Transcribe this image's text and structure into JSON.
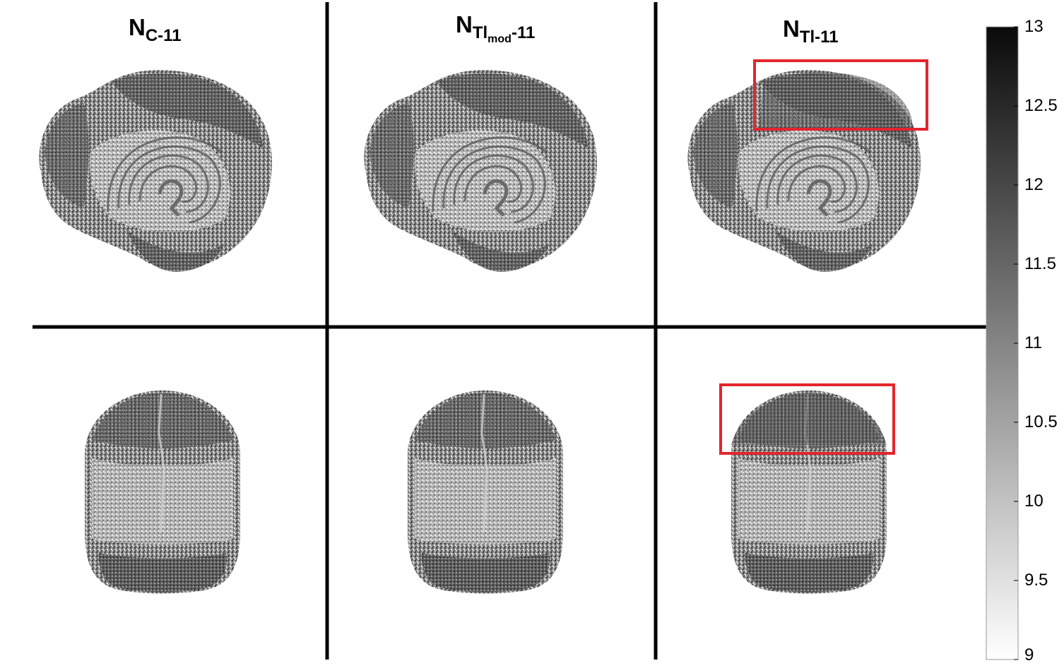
{
  "panels": {
    "columns": [
      {
        "id": "c11",
        "title_main": "N",
        "title_sub": "C-11",
        "title_subsub": "",
        "title_tail": "",
        "highlight": false
      },
      {
        "id": "tlmod",
        "title_main": "N",
        "title_sub": "Tl",
        "title_subsub": "mod",
        "title_tail": "-11",
        "highlight": false
      },
      {
        "id": "tl11",
        "title_main": "N",
        "title_sub": "Tl-11",
        "title_subsub": "",
        "title_tail": "",
        "highlight": true
      }
    ],
    "rows": [
      "sagittal-3d-view",
      "coronal-3d-view"
    ]
  },
  "colorbar": {
    "min": 9,
    "max": 13,
    "colormap": "white-to-black",
    "ticks": [
      "13",
      "12.5",
      "12",
      "11.5",
      "11",
      "10.5",
      "10",
      "9.5",
      "9"
    ]
  },
  "colors": {
    "highlight_box": "#e3262d",
    "divider": "#000000",
    "brain_dark": "#3a3a3a",
    "brain_mid": "#7a7a7a",
    "brain_light": "#e8e8e8"
  }
}
